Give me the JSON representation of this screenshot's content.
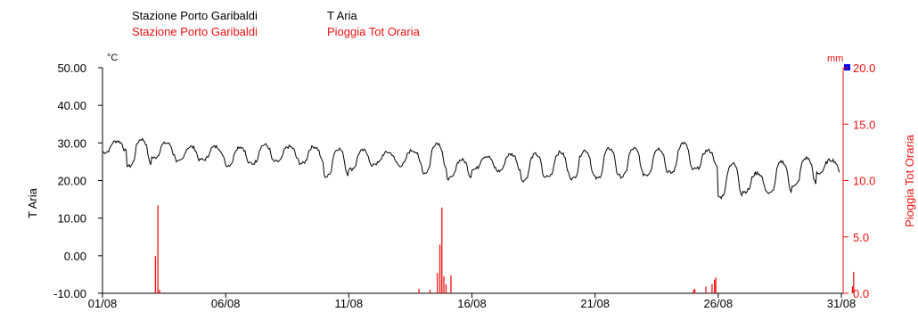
{
  "legend": [
    {
      "station": "Stazione Porto Garibaldi",
      "variable": "T Aria",
      "color": "#000000"
    },
    {
      "station": "Stazione Porto Garibaldi",
      "variable": "Pioggia Tot Oraria",
      "color": "#ee1111"
    }
  ],
  "chart_data": {
    "type": "line",
    "x_axis": {
      "range": [
        "2023-08-01",
        "2023-08-31"
      ],
      "ticks": [
        {
          "day": 1,
          "label": "01/08"
        },
        {
          "day": 6,
          "label": "06/08"
        },
        {
          "day": 11,
          "label": "11/08"
        },
        {
          "day": 16,
          "label": "16/08"
        },
        {
          "day": 21,
          "label": "21/08"
        },
        {
          "day": 26,
          "label": "26/08"
        },
        {
          "day": 31,
          "label": "31/08"
        }
      ]
    },
    "y_left": {
      "label": "T Aria",
      "unit": "°C",
      "range": [
        -10,
        50
      ],
      "ticks": [
        "-10.00",
        "0.00",
        "10.00",
        "20.00",
        "30.00",
        "40.00",
        "50.00"
      ],
      "color": "#000000"
    },
    "y_right": {
      "label": "Pioggia Tot Oraria",
      "unit": "mm",
      "range": [
        0,
        20
      ],
      "ticks": [
        "0.0",
        "5.0",
        "10.0",
        "15.0",
        "20.0"
      ],
      "color": "#ee1111"
    },
    "series": [
      {
        "name": "T Aria",
        "axis": "left",
        "color": "#000000",
        "daily": [
          {
            "day": 1,
            "min": 27.5,
            "max": 30.5
          },
          {
            "day": 2,
            "min": 23.8,
            "max": 31.0
          },
          {
            "day": 3,
            "min": 26.0,
            "max": 30.0
          },
          {
            "day": 4,
            "min": 25.0,
            "max": 29.0
          },
          {
            "day": 5,
            "min": 25.5,
            "max": 29.0
          },
          {
            "day": 6,
            "min": 24.0,
            "max": 29.0
          },
          {
            "day": 7,
            "min": 24.5,
            "max": 29.5
          },
          {
            "day": 8,
            "min": 25.0,
            "max": 29.0
          },
          {
            "day": 9,
            "min": 24.5,
            "max": 29.0
          },
          {
            "day": 10,
            "min": 21.0,
            "max": 28.5
          },
          {
            "day": 11,
            "min": 23.0,
            "max": 28.0
          },
          {
            "day": 12,
            "min": 24.5,
            "max": 27.5
          },
          {
            "day": 13,
            "min": 24.0,
            "max": 28.0
          },
          {
            "day": 14,
            "min": 22.0,
            "max": 30.0
          },
          {
            "day": 15,
            "min": 20.5,
            "max": 25.5
          },
          {
            "day": 16,
            "min": 23.0,
            "max": 26.5
          },
          {
            "day": 17,
            "min": 22.5,
            "max": 27.0
          },
          {
            "day": 18,
            "min": 20.0,
            "max": 27.0
          },
          {
            "day": 19,
            "min": 21.0,
            "max": 27.5
          },
          {
            "day": 20,
            "min": 20.5,
            "max": 28.0
          },
          {
            "day": 21,
            "min": 20.5,
            "max": 28.5
          },
          {
            "day": 22,
            "min": 21.0,
            "max": 28.5
          },
          {
            "day": 23,
            "min": 21.5,
            "max": 28.5
          },
          {
            "day": 24,
            "min": 22.0,
            "max": 30.0
          },
          {
            "day": 25,
            "min": 23.0,
            "max": 28.0
          },
          {
            "day": 26,
            "min": 15.5,
            "max": 24.5
          },
          {
            "day": 27,
            "min": 17.0,
            "max": 22.0
          },
          {
            "day": 28,
            "min": 16.5,
            "max": 25.0
          },
          {
            "day": 29,
            "min": 18.5,
            "max": 26.0
          },
          {
            "day": 30,
            "min": 22.0,
            "max": 25.5
          },
          {
            "day": 31,
            "min": 21.5,
            "max": 25.5
          }
        ]
      },
      {
        "name": "Pioggia Tot Oraria",
        "axis": "right",
        "color": "#ee1111",
        "bars": [
          {
            "day": 3.15,
            "value": 3.3
          },
          {
            "day": 3.25,
            "value": 7.8
          },
          {
            "day": 3.32,
            "value": 0.3
          },
          {
            "day": 13.85,
            "value": 0.4
          },
          {
            "day": 14.3,
            "value": 0.3
          },
          {
            "day": 14.6,
            "value": 1.8
          },
          {
            "day": 14.7,
            "value": 4.3
          },
          {
            "day": 14.78,
            "value": 7.6
          },
          {
            "day": 14.86,
            "value": 1.5
          },
          {
            "day": 14.95,
            "value": 0.8
          },
          {
            "day": 15.15,
            "value": 1.6
          },
          {
            "day": 25.0,
            "value": 0.3
          },
          {
            "day": 25.05,
            "value": 0.4
          },
          {
            "day": 25.5,
            "value": 0.6
          },
          {
            "day": 25.75,
            "value": 0.8
          },
          {
            "day": 25.85,
            "value": 1.2
          },
          {
            "day": 25.9,
            "value": 1.4
          },
          {
            "day": 31.45,
            "value": 0.6
          },
          {
            "day": 31.5,
            "value": 1.9
          }
        ]
      }
    ]
  }
}
